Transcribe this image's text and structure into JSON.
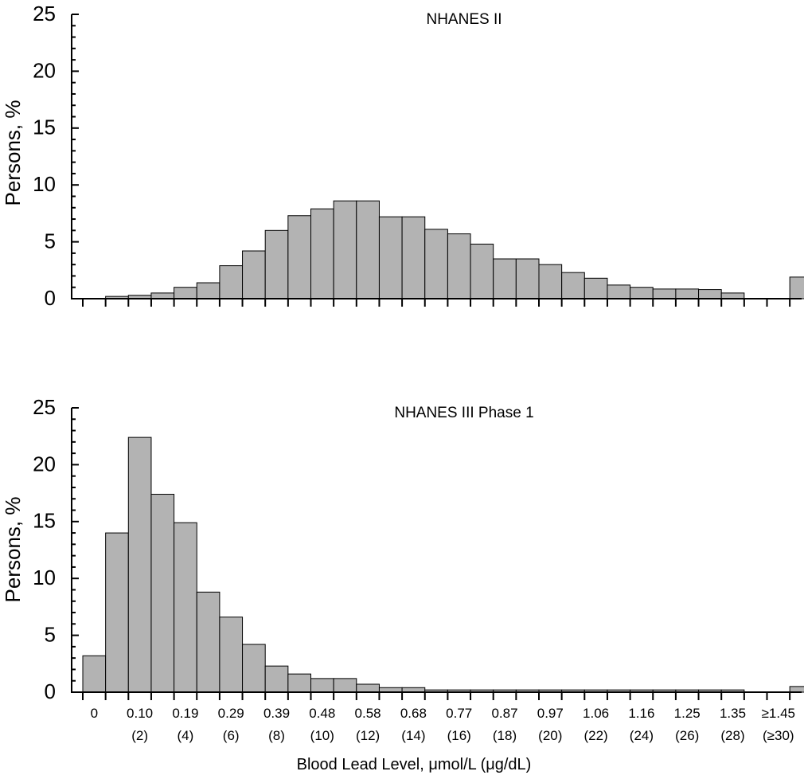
{
  "chart_data": [
    {
      "type": "bar",
      "title": "NHANES II",
      "ylabel": "Persons, %",
      "xlabel": "",
      "ylim": [
        0,
        25
      ],
      "yticks": [
        0,
        5,
        10,
        15,
        20,
        25
      ],
      "bins": 32,
      "values": [
        0,
        0.2,
        0.3,
        0.5,
        1.0,
        1.4,
        2.9,
        4.2,
        6.0,
        7.3,
        7.9,
        8.6,
        8.6,
        7.2,
        7.2,
        6.1,
        5.7,
        4.8,
        3.5,
        3.5,
        3.0,
        2.3,
        1.8,
        1.2,
        1.0,
        0.85,
        0.85,
        0.8,
        0.5,
        0,
        0,
        1.9
      ],
      "xtick_labels": []
    },
    {
      "type": "bar",
      "title": "NHANES III Phase 1",
      "ylabel": "Persons, %",
      "xlabel": "Blood Lead Level, μmol/L  (μg/dL)",
      "ylim": [
        0,
        25
      ],
      "yticks": [
        0,
        5,
        10,
        15,
        20,
        25
      ],
      "bins": 32,
      "values": [
        3.2,
        14.0,
        22.4,
        17.4,
        14.9,
        8.8,
        6.6,
        4.2,
        2.3,
        1.6,
        1.2,
        1.2,
        0.7,
        0.4,
        0.4,
        0.2,
        0.2,
        0.2,
        0.2,
        0.2,
        0.2,
        0.2,
        0.2,
        0.2,
        0.2,
        0.2,
        0.2,
        0.2,
        0.2,
        0,
        0,
        0.5
      ],
      "xtick_labels": [
        {
          "line1": "0",
          "line2": ""
        },
        {
          "line1": "0.10",
          "line2": "(2)"
        },
        {
          "line1": "0.19",
          "line2": "(4)"
        },
        {
          "line1": "0.29",
          "line2": "(6)"
        },
        {
          "line1": "0.39",
          "line2": "(8)"
        },
        {
          "line1": "0.48",
          "line2": "(10)"
        },
        {
          "line1": "0.58",
          "line2": "(12)"
        },
        {
          "line1": "0.68",
          "line2": "(14)"
        },
        {
          "line1": "0.77",
          "line2": "(16)"
        },
        {
          "line1": "0.87",
          "line2": "(18)"
        },
        {
          "line1": "0.97",
          "line2": "(20)"
        },
        {
          "line1": "1.06",
          "line2": "(22)"
        },
        {
          "line1": "1.16",
          "line2": "(24)"
        },
        {
          "line1": "1.25",
          "line2": "(26)"
        },
        {
          "line1": "1.35",
          "line2": "(28)"
        },
        {
          "line1": "≥1.45",
          "line2": "(≥30)"
        }
      ]
    }
  ],
  "colors": {
    "bar_fill": "#b3b3b3",
    "bar_stroke": "#000000",
    "axis": "#000000"
  }
}
